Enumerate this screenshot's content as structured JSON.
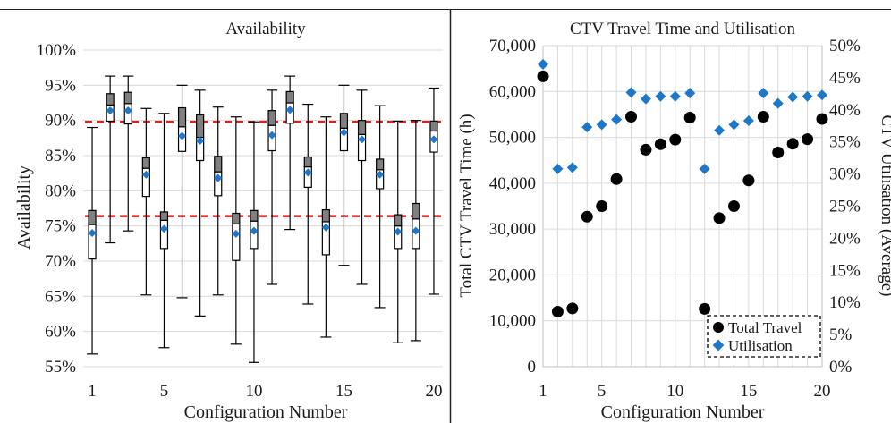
{
  "chart_data": [
    {
      "type": "boxplot",
      "title": "Availability",
      "xlabel": "Configuration Number",
      "ylabel": "Availability",
      "xlim": [
        0.5,
        20.5
      ],
      "ylim": [
        0.55,
        1.0
      ],
      "x_ticks": [
        1,
        5,
        10,
        15,
        20
      ],
      "y_ticks": [
        0.55,
        0.6,
        0.65,
        0.7,
        0.75,
        0.8,
        0.85,
        0.9,
        0.95,
        1.0
      ],
      "y_tick_labels": [
        "55%",
        "60%",
        "65%",
        "70%",
        "75%",
        "80%",
        "85%",
        "90%",
        "95%",
        "100%"
      ],
      "grid": "horizontal",
      "reference_lines": [
        0.898,
        0.764
      ],
      "colors": {
        "box_upper": "#7f7f7f",
        "box_lower": "#ffffff",
        "mean": "#1f77c8",
        "reference": "#e02020",
        "grid": "#d9d9d9"
      },
      "boxes": [
        {
          "x": 1,
          "min": 0.568,
          "q1": 0.703,
          "median": 0.752,
          "q3": 0.772,
          "max": 0.89,
          "mean": 0.74
        },
        {
          "x": 2,
          "min": 0.726,
          "q1": 0.899,
          "median": 0.922,
          "q3": 0.938,
          "max": 0.963,
          "mean": 0.914
        },
        {
          "x": 3,
          "min": 0.743,
          "q1": 0.895,
          "median": 0.924,
          "q3": 0.94,
          "max": 0.963,
          "mean": 0.914
        },
        {
          "x": 4,
          "min": 0.652,
          "q1": 0.792,
          "median": 0.832,
          "q3": 0.847,
          "max": 0.917,
          "mean": 0.823
        },
        {
          "x": 5,
          "min": 0.577,
          "q1": 0.718,
          "median": 0.758,
          "q3": 0.77,
          "max": 0.91,
          "mean": 0.746
        },
        {
          "x": 6,
          "min": 0.648,
          "q1": 0.856,
          "median": 0.891,
          "q3": 0.918,
          "max": 0.95,
          "mean": 0.878
        },
        {
          "x": 7,
          "min": 0.622,
          "q1": 0.843,
          "median": 0.876,
          "q3": 0.908,
          "max": 0.943,
          "mean": 0.871
        },
        {
          "x": 8,
          "min": 0.652,
          "q1": 0.793,
          "median": 0.827,
          "q3": 0.849,
          "max": 0.919,
          "mean": 0.818
        },
        {
          "x": 9,
          "min": 0.582,
          "q1": 0.701,
          "median": 0.753,
          "q3": 0.768,
          "max": 0.905,
          "mean": 0.739
        },
        {
          "x": 10,
          "min": 0.556,
          "q1": 0.718,
          "median": 0.757,
          "q3": 0.772,
          "max": 0.898,
          "mean": 0.743
        },
        {
          "x": 11,
          "min": 0.667,
          "q1": 0.857,
          "median": 0.893,
          "q3": 0.914,
          "max": 0.943,
          "mean": 0.879
        },
        {
          "x": 12,
          "min": 0.745,
          "q1": 0.896,
          "median": 0.925,
          "q3": 0.941,
          "max": 0.963,
          "mean": 0.915
        },
        {
          "x": 13,
          "min": 0.639,
          "q1": 0.805,
          "median": 0.834,
          "q3": 0.848,
          "max": 0.923,
          "mean": 0.826
        },
        {
          "x": 14,
          "min": 0.592,
          "q1": 0.709,
          "median": 0.756,
          "q3": 0.773,
          "max": 0.905,
          "mean": 0.748
        },
        {
          "x": 15,
          "min": 0.694,
          "q1": 0.857,
          "median": 0.889,
          "q3": 0.91,
          "max": 0.95,
          "mean": 0.883
        },
        {
          "x": 16,
          "min": 0.667,
          "q1": 0.843,
          "median": 0.88,
          "q3": 0.9,
          "max": 0.943,
          "mean": 0.873
        },
        {
          "x": 17,
          "min": 0.634,
          "q1": 0.803,
          "median": 0.83,
          "q3": 0.845,
          "max": 0.921,
          "mean": 0.823
        },
        {
          "x": 18,
          "min": 0.584,
          "q1": 0.718,
          "median": 0.75,
          "q3": 0.766,
          "max": 0.899,
          "mean": 0.742
        },
        {
          "x": 19,
          "min": 0.587,
          "q1": 0.718,
          "median": 0.76,
          "q3": 0.782,
          "max": 0.9,
          "mean": 0.743
        },
        {
          "x": 20,
          "min": 0.653,
          "q1": 0.855,
          "median": 0.885,
          "q3": 0.899,
          "max": 0.946,
          "mean": 0.873
        }
      ]
    },
    {
      "type": "scatter",
      "title": "CTV Travel Time and Utilisation",
      "xlabel": "Configuration Number",
      "ylabel": "Total CTV Travel Time (h)",
      "y2label": "CTV Utilisation (Average)",
      "xlim": [
        1,
        20
      ],
      "ylim": [
        0,
        70000
      ],
      "y2lim": [
        0,
        0.5
      ],
      "x_ticks": [
        1,
        5,
        10,
        15,
        20
      ],
      "y_ticks": [
        0,
        10000,
        20000,
        30000,
        40000,
        50000,
        60000,
        70000
      ],
      "y_tick_labels": [
        "0",
        "10,000",
        "20,000",
        "30,000",
        "40,000",
        "50,000",
        "60,000",
        "70,000"
      ],
      "y2_ticks": [
        0,
        0.05,
        0.1,
        0.15,
        0.2,
        0.25,
        0.3,
        0.35,
        0.4,
        0.45,
        0.5
      ],
      "y2_tick_labels": [
        "0%",
        "5%",
        "10%",
        "15%",
        "20%",
        "25%",
        "30%",
        "35%",
        "40%",
        "45%",
        "50%"
      ],
      "grid": "both",
      "legend": "bottom-right",
      "series": [
        {
          "name": "Total Travel",
          "axis": "left",
          "marker": "circle",
          "color": "#000000",
          "x": [
            1,
            2,
            3,
            4,
            5,
            6,
            7,
            8,
            9,
            10,
            11,
            12,
            13,
            14,
            15,
            16,
            17,
            18,
            19,
            20
          ],
          "values": [
            63300,
            12000,
            12700,
            32700,
            35000,
            40900,
            54500,
            47300,
            48500,
            49500,
            54300,
            12600,
            32400,
            35000,
            40600,
            54500,
            46700,
            48600,
            49600,
            54000
          ]
        },
        {
          "name": "Utilisation",
          "axis": "right",
          "marker": "diamond",
          "color": "#1f77c8",
          "x": [
            1,
            2,
            3,
            4,
            5,
            6,
            7,
            8,
            9,
            10,
            11,
            12,
            13,
            14,
            15,
            16,
            17,
            18,
            19,
            20
          ],
          "values": [
            0.471,
            0.308,
            0.31,
            0.373,
            0.377,
            0.385,
            0.427,
            0.417,
            0.421,
            0.421,
            0.426,
            0.308,
            0.368,
            0.377,
            0.383,
            0.426,
            0.41,
            0.42,
            0.421,
            0.423
          ]
        }
      ]
    }
  ]
}
